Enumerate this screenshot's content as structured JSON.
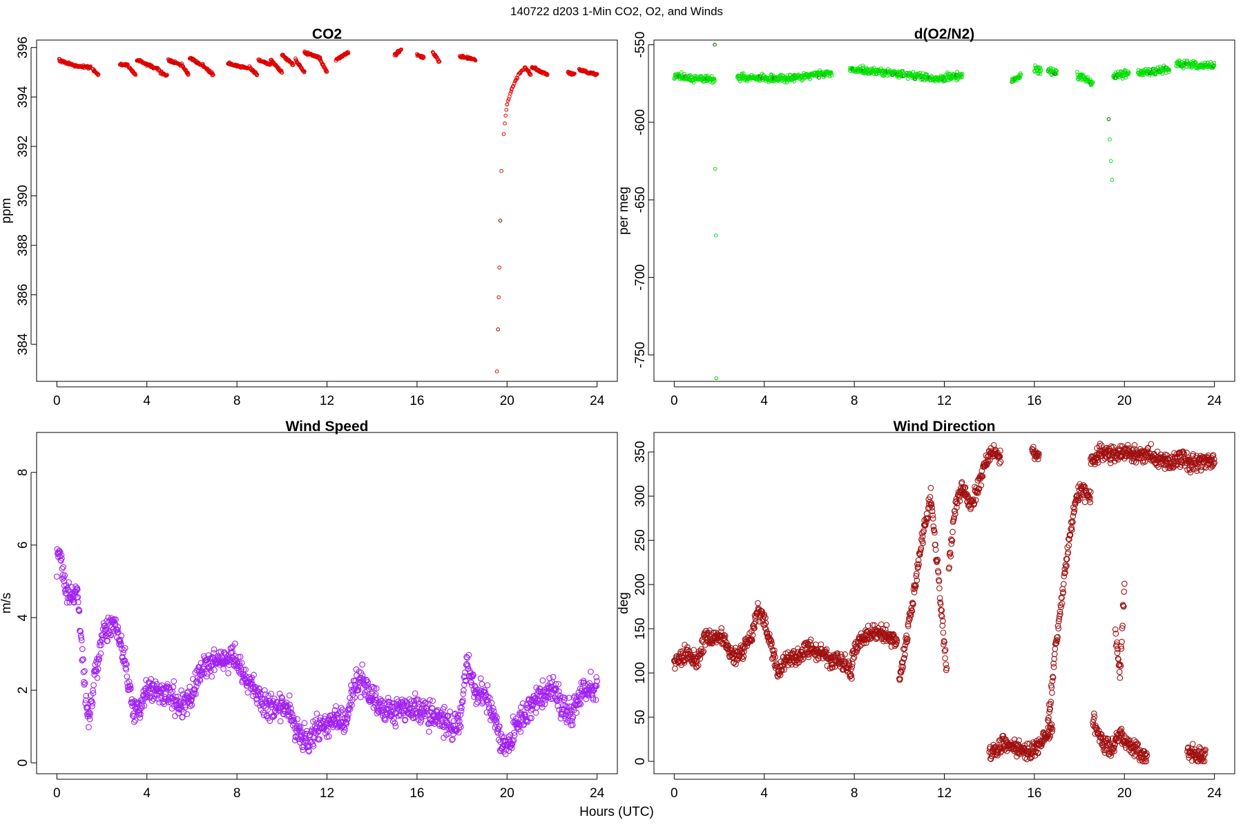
{
  "figure": {
    "suptitle": "140722   d203   1-Min CO2, O2, and Winds",
    "xlabel": "Hours (UTC)"
  },
  "chart_data": [
    {
      "id": "co2",
      "type": "scatter",
      "title": "CO2",
      "xlabel": "",
      "ylabel": "ppm",
      "xlim": [
        -0.9,
        24.9
      ],
      "ylim": [
        382.5,
        396.3
      ],
      "xticks": [
        0,
        4,
        8,
        12,
        16,
        20,
        24
      ],
      "yticks": [
        384,
        386,
        388,
        390,
        392,
        394,
        396
      ],
      "marker": "open-circle",
      "marker_size": "small",
      "colors": {
        "primary": "#e00000",
        "alternate": "#8b0000"
      },
      "segments": [
        {
          "x": [
            0.1,
            0.8,
            1.5
          ],
          "y": [
            395.5,
            395.25,
            395.2
          ]
        },
        {
          "x": [
            1.6,
            1.85
          ],
          "y": [
            395.1,
            394.9
          ]
        },
        {
          "x": [
            2.8,
            3.15
          ],
          "y": [
            395.3,
            395.3
          ]
        },
        {
          "x": [
            3.2,
            3.5
          ],
          "y": [
            395.2,
            394.9
          ]
        },
        {
          "x": [
            3.55,
            3.8,
            4.55
          ],
          "y": [
            395.5,
            395.4,
            395.1
          ]
        },
        {
          "x": [
            4.6,
            4.9
          ],
          "y": [
            395.0,
            394.85
          ]
        },
        {
          "x": [
            4.95,
            5.5
          ],
          "y": [
            395.5,
            395.3
          ]
        },
        {
          "x": [
            5.55,
            5.85
          ],
          "y": [
            395.3,
            394.9
          ]
        },
        {
          "x": [
            5.9,
            6.4
          ],
          "y": [
            395.6,
            395.3
          ]
        },
        {
          "x": [
            6.45,
            6.95
          ],
          "y": [
            395.3,
            394.9
          ]
        },
        {
          "x": [
            7.6,
            8.5
          ],
          "y": [
            395.35,
            395.15
          ]
        },
        {
          "x": [
            8.55,
            8.9
          ],
          "y": [
            395.2,
            394.9
          ]
        },
        {
          "x": [
            8.95,
            9.5
          ],
          "y": [
            395.5,
            395.3
          ]
        },
        {
          "x": [
            9.5,
            10.0
          ],
          "y": [
            395.5,
            395.0
          ]
        },
        {
          "x": [
            10.0,
            10.5
          ],
          "y": [
            395.7,
            395.3
          ]
        },
        {
          "x": [
            10.6,
            11.0
          ],
          "y": [
            395.5,
            395.0
          ]
        },
        {
          "x": [
            11.0,
            11.7
          ],
          "y": [
            395.8,
            395.6
          ]
        },
        {
          "x": [
            11.7,
            12.0
          ],
          "y": [
            395.5,
            395.0
          ]
        },
        {
          "x": [
            12.4,
            12.95
          ],
          "y": [
            395.5,
            395.8
          ]
        },
        {
          "x": [
            15.0,
            15.3
          ],
          "y": [
            395.7,
            395.9
          ]
        },
        {
          "x": [
            16.0,
            16.3
          ],
          "y": [
            395.7,
            395.6
          ]
        },
        {
          "x": [
            16.7,
            17.0
          ],
          "y": [
            395.8,
            395.4
          ]
        },
        {
          "x": [
            17.9,
            18.6
          ],
          "y": [
            395.65,
            395.5
          ]
        },
        {
          "x": [
            19.55,
            19.6,
            19.63,
            19.66,
            19.7,
            19.75,
            19.85,
            20.0,
            20.2,
            20.4,
            20.6,
            20.8
          ],
          "y": [
            382.9,
            384.6,
            385.9,
            387.1,
            389.0,
            391.0,
            392.5,
            393.7,
            394.3,
            394.7,
            395.0,
            395.2
          ]
        },
        {
          "x": [
            20.8,
            21.05
          ],
          "y": [
            395.2,
            394.9
          ]
        },
        {
          "x": [
            21.1,
            21.8
          ],
          "y": [
            395.2,
            394.9
          ]
        },
        {
          "x": [
            22.7,
            23.0
          ],
          "y": [
            395.0,
            394.9
          ]
        },
        {
          "x": [
            23.2,
            24.0
          ],
          "y": [
            395.1,
            394.9
          ]
        }
      ]
    },
    {
      "id": "o2n2",
      "type": "scatter",
      "title": "d(O2/N2)",
      "xlabel": "",
      "ylabel": "per meg",
      "xlim": [
        -0.9,
        24.9
      ],
      "ylim": [
        -767,
        -547
      ],
      "xticks": [
        0,
        4,
        8,
        12,
        16,
        20,
        24
      ],
      "yticks": [
        -550,
        -600,
        -650,
        -700,
        -750
      ],
      "marker": "open-circle",
      "marker_size": "small",
      "colors": {
        "primary": "#00e000",
        "alternate": "#006400"
      },
      "segments": [
        {
          "x": [
            0.0,
            0.8,
            1.8
          ],
          "y": [
            -570,
            -572,
            -572
          ]
        },
        {
          "x": [
            1.8,
            1.82,
            1.85,
            1.87
          ],
          "y": [
            -550,
            -630,
            -673,
            -765
          ]
        },
        {
          "x": [
            2.8,
            5.0,
            7.0
          ],
          "y": [
            -571,
            -572,
            -568
          ]
        },
        {
          "x": [
            7.8,
            9.0,
            10.2
          ],
          "y": [
            -566,
            -567,
            -569
          ]
        },
        {
          "x": [
            10.3,
            11.5,
            12.8
          ],
          "y": [
            -569,
            -572,
            -570
          ]
        },
        {
          "x": [
            15.0,
            15.4
          ],
          "y": [
            -574,
            -570
          ]
        },
        {
          "x": [
            16.0,
            16.3
          ],
          "y": [
            -565,
            -566
          ]
        },
        {
          "x": [
            16.6,
            17.0
          ],
          "y": [
            -567,
            -568
          ]
        },
        {
          "x": [
            17.9,
            18.6
          ],
          "y": [
            -570,
            -574
          ]
        },
        {
          "x": [
            19.3,
            19.35,
            19.4,
            19.45
          ],
          "y": [
            -598,
            -611,
            -625,
            -637
          ]
        },
        {
          "x": [
            19.5,
            20.2
          ],
          "y": [
            -570,
            -568
          ]
        },
        {
          "x": [
            20.6,
            22.0
          ],
          "y": [
            -568,
            -566
          ]
        },
        {
          "x": [
            22.3,
            24.0
          ],
          "y": [
            -562,
            -564
          ]
        }
      ]
    },
    {
      "id": "wspd",
      "type": "scatter",
      "title": "Wind Speed",
      "xlabel": "",
      "ylabel": "m/s",
      "xlim": [
        -0.9,
        24.9
      ],
      "ylim": [
        -0.3,
        9.1
      ],
      "xticks": [
        0,
        4,
        8,
        12,
        16,
        20,
        24
      ],
      "yticks": [
        0,
        2,
        4,
        6,
        8
      ],
      "marker": "open-circle",
      "marker_size": "large",
      "colors": {
        "primary": "#a020f0"
      },
      "series": [
        {
          "x": [
            0,
            0.1,
            0.3,
            0.6,
            0.9,
            1.2,
            1.4,
            1.6,
            2.0,
            2.4,
            2.6,
            2.8,
            3.1,
            3.4,
            3.7,
            4.0,
            4.5,
            5.0,
            5.5,
            6.0,
            6.5,
            7.0,
            7.5,
            7.8,
            8.2,
            8.8,
            9.3,
            9.8,
            10.3,
            10.8,
            11.2,
            11.6,
            12.0,
            12.4,
            12.8,
            13.2,
            13.6,
            14.0,
            14.5,
            15.0,
            15.5,
            16.0,
            16.5,
            17.0,
            17.5,
            17.9,
            18.2,
            18.6,
            19.0,
            19.4,
            19.7,
            20.0,
            20.4,
            20.8,
            21.2,
            21.6,
            22.0,
            22.4,
            22.8,
            23.2,
            23.6,
            24.0
          ],
          "y": [
            5.5,
            6.0,
            5.0,
            4.5,
            4.8,
            2.5,
            1.0,
            2.0,
            3.5,
            3.8,
            3.8,
            3.5,
            2.5,
            1.5,
            1.5,
            2.0,
            2.0,
            1.8,
            1.6,
            1.8,
            2.7,
            2.8,
            2.8,
            3.0,
            2.5,
            2.0,
            1.5,
            1.5,
            1.5,
            0.7,
            0.6,
            1.0,
            1.0,
            1.3,
            1.0,
            2.2,
            2.3,
            1.8,
            1.5,
            1.5,
            1.5,
            1.5,
            1.3,
            1.2,
            1.0,
            1.1,
            2.8,
            2.0,
            1.8,
            1.3,
            0.6,
            0.5,
            1.0,
            1.4,
            1.6,
            1.9,
            2.0,
            1.6,
            1.3,
            1.8,
            2.0,
            2.0
          ]
        }
      ]
    },
    {
      "id": "wdir",
      "type": "scatter",
      "title": "Wind Direction",
      "xlabel": "",
      "ylabel": "deg",
      "xlim": [
        -0.9,
        24.9
      ],
      "ylim": [
        -14,
        372
      ],
      "xticks": [
        0,
        4,
        8,
        12,
        16,
        20,
        24
      ],
      "yticks": [
        0,
        50,
        100,
        150,
        200,
        250,
        300,
        350
      ],
      "marker": "open-circle",
      "marker_size": "large",
      "colors": {
        "primary": "#a01010"
      },
      "segments": [
        {
          "x": [
            0.0,
            0.6,
            1.0,
            1.4,
            1.8,
            2.2,
            2.6,
            3.0,
            3.4,
            3.7,
            4.0,
            4.3,
            4.6,
            5.0,
            5.6,
            6.0,
            6.4,
            7.0,
            7.6,
            7.9
          ],
          "y": [
            110,
            125,
            110,
            140,
            140,
            140,
            115,
            125,
            140,
            170,
            160,
            130,
            100,
            115,
            120,
            130,
            125,
            115,
            110,
            100
          ]
        },
        {
          "x": [
            7.9,
            8.4,
            8.8,
            9.2,
            9.6,
            9.9
          ],
          "y": [
            120,
            140,
            145,
            145,
            140,
            135
          ]
        },
        {
          "x": [
            10.0,
            10.6,
            11.0,
            11.4,
            11.8,
            12.1
          ],
          "y": [
            90,
            180,
            250,
            300,
            190,
            100
          ]
        },
        {
          "x": [
            12.2,
            12.5,
            12.8,
            13.2,
            13.6,
            14.0,
            14.5
          ],
          "y": [
            220,
            290,
            310,
            290,
            320,
            350,
            345
          ]
        },
        {
          "x": [
            14.0,
            14.6,
            15.2,
            15.8,
            16.4,
            16.8
          ],
          "y": [
            10,
            20,
            15,
            10,
            25,
            40
          ]
        },
        {
          "x": [
            15.9,
            16.2
          ],
          "y": [
            350,
            345
          ]
        },
        {
          "x": [
            16.6,
            16.9,
            17.2,
            17.5,
            17.8,
            18.1,
            18.5
          ],
          "y": [
            40,
            120,
            180,
            240,
            290,
            310,
            300
          ]
        },
        {
          "x": [
            18.6,
            19.0,
            19.4,
            19.8,
            20.2,
            20.6,
            21.0
          ],
          "y": [
            50,
            20,
            15,
            30,
            20,
            10,
            5
          ]
        },
        {
          "x": [
            19.6,
            19.8,
            20.0
          ],
          "y": [
            150,
            100,
            200
          ]
        },
        {
          "x": [
            18.5,
            19.0,
            19.5,
            20.0,
            20.5,
            21.0,
            21.5,
            22.0,
            22.5,
            23.0,
            23.5,
            24.0
          ],
          "y": [
            340,
            350,
            345,
            350,
            345,
            350,
            340,
            340,
            345,
            335,
            340,
            340
          ]
        },
        {
          "x": [
            22.8,
            23.6
          ],
          "y": [
            10,
            5
          ]
        }
      ]
    }
  ]
}
